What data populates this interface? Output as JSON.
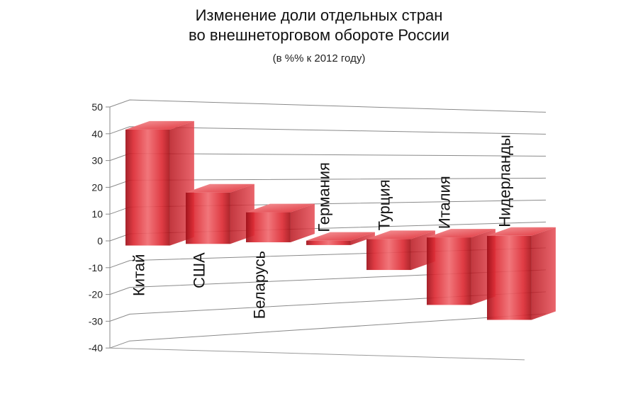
{
  "chart_data": {
    "type": "bar",
    "title": "Изменение доли отдельных стран",
    "title_line2": "во внешнеторговом обороте России",
    "subtitle": "(в %% к 2012 году)",
    "categories": [
      "Китай",
      "США",
      "Беларусь",
      "Германия",
      "Турция",
      "Италия",
      "Нидерланды"
    ],
    "values": [
      44,
      20,
      12,
      -1,
      -12,
      -28,
      -36
    ],
    "ylim": [
      -40,
      50
    ],
    "yticks": [
      50,
      40,
      30,
      20,
      10,
      0,
      -10,
      -20,
      -30,
      -40
    ],
    "grid": true,
    "style": "3d-column",
    "bar_color": "#d9202a"
  }
}
